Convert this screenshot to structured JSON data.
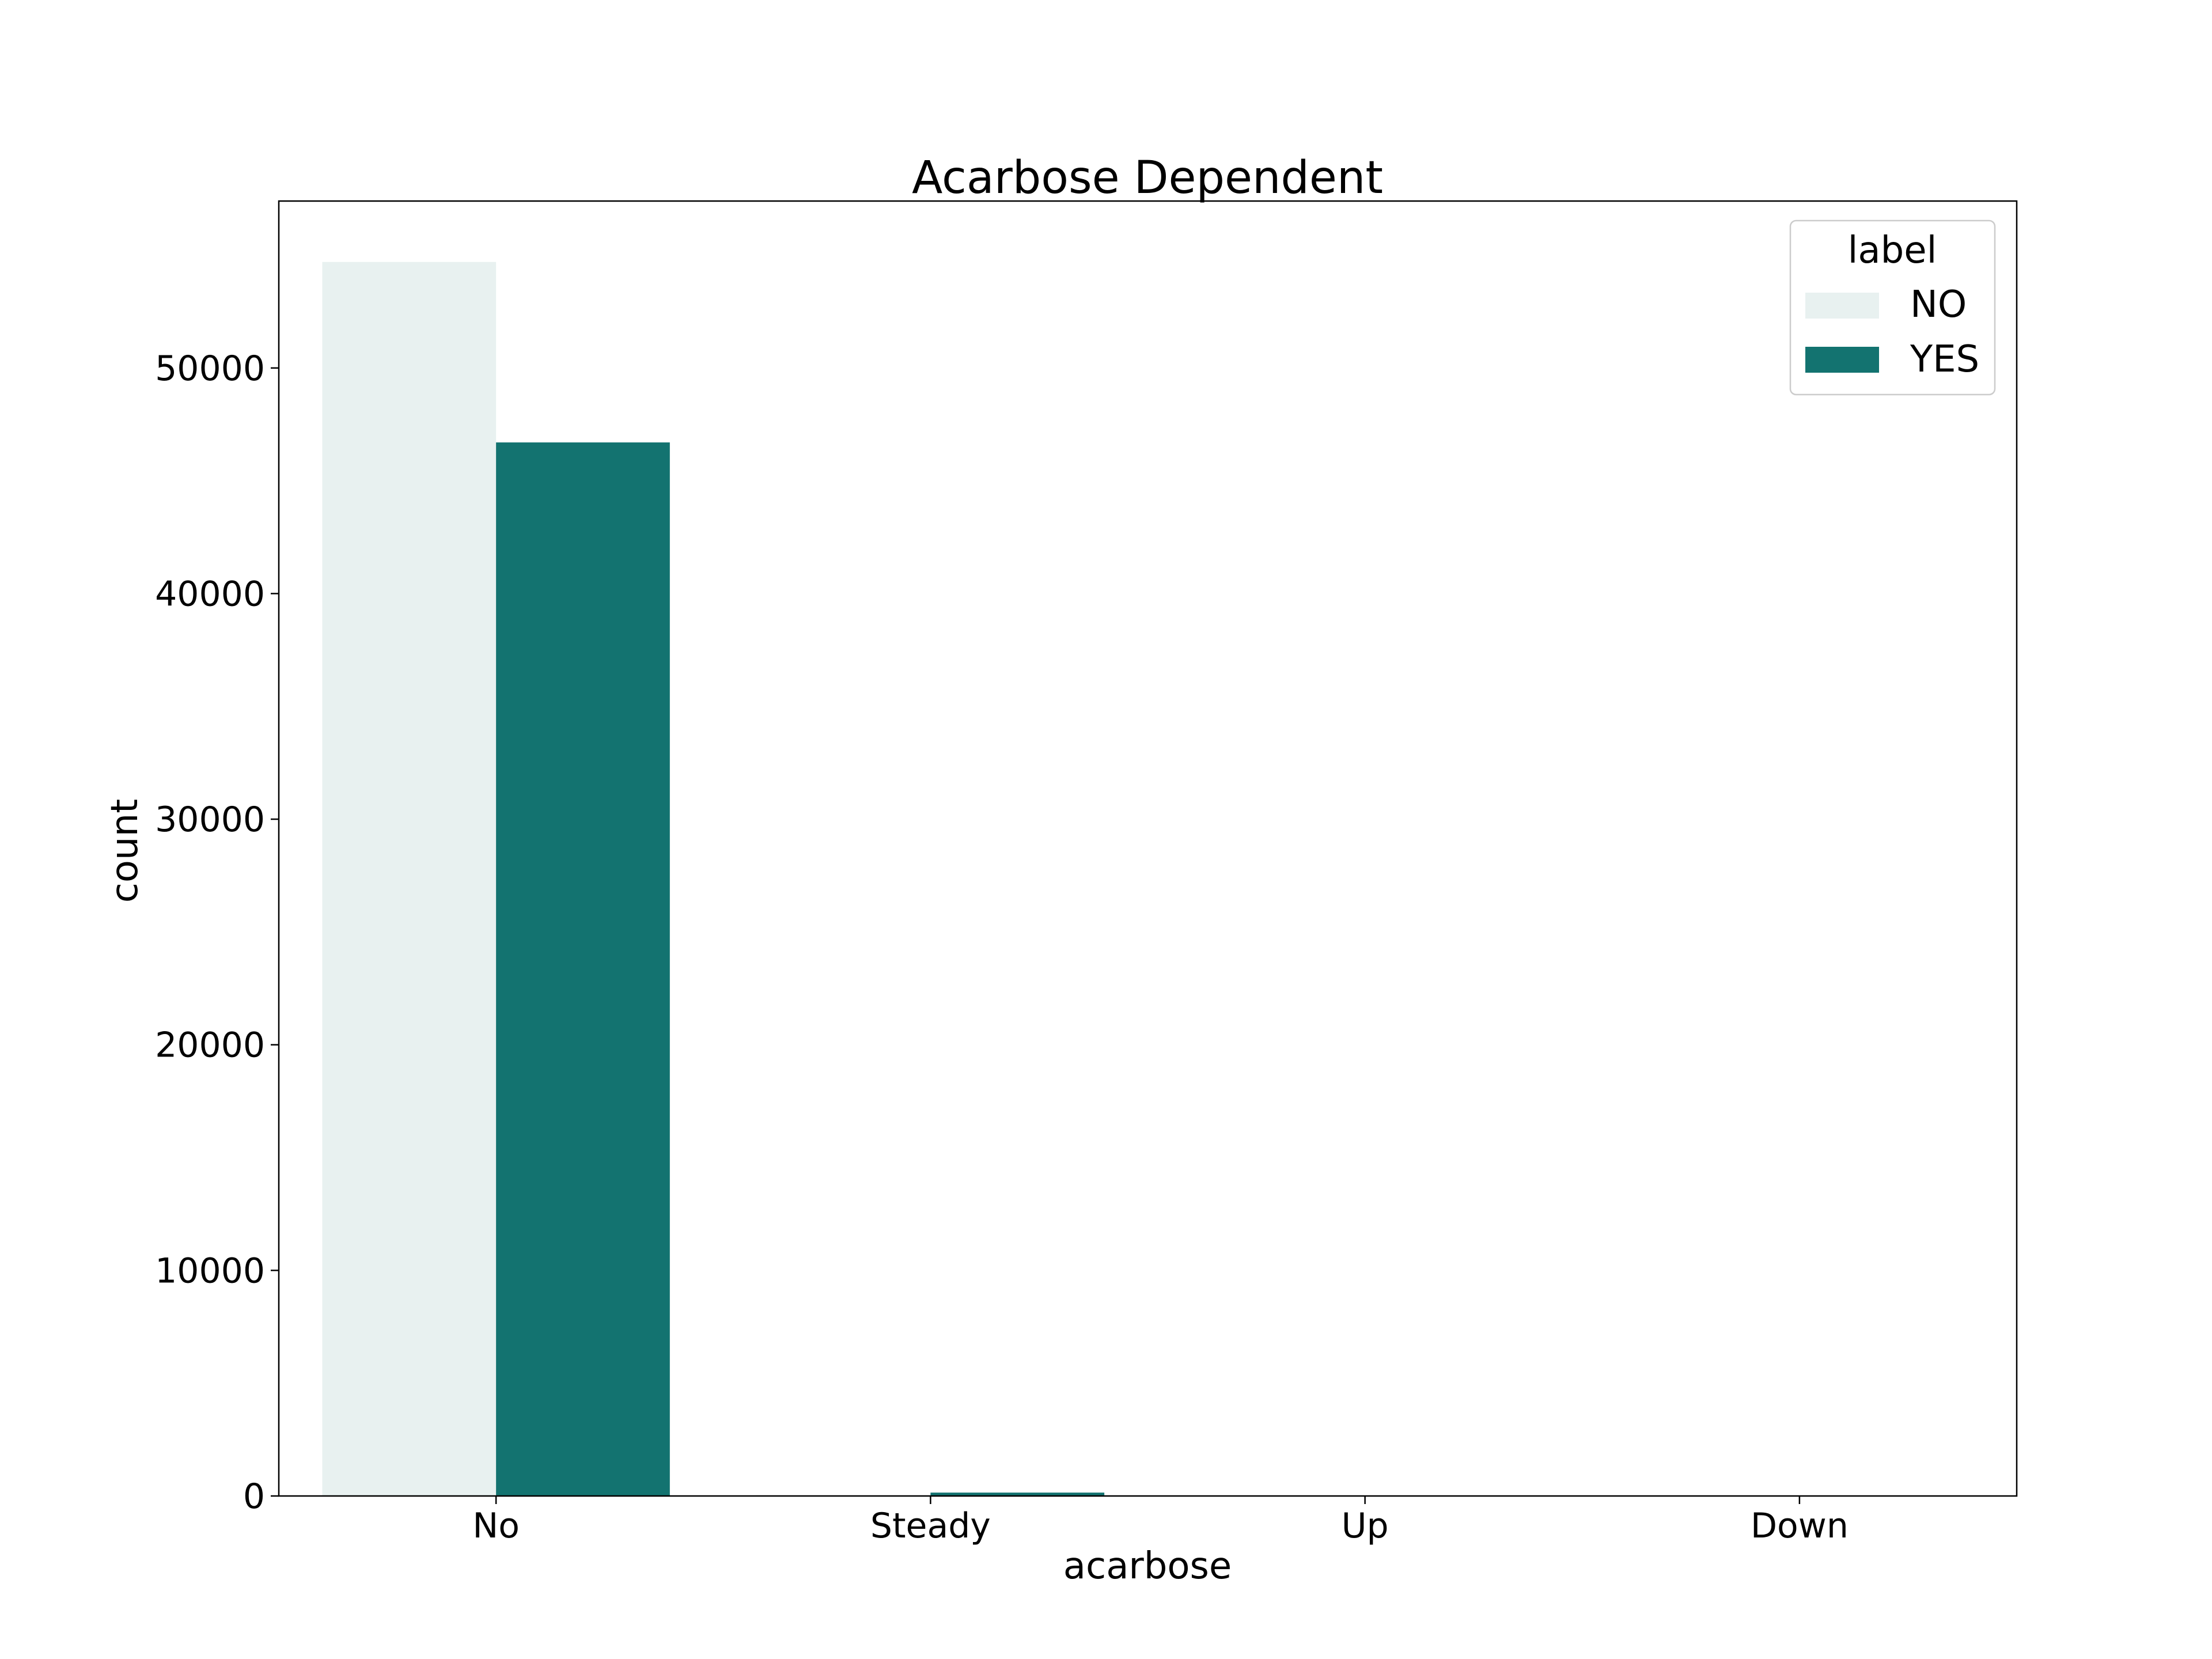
{
  "chart_data": {
    "type": "bar",
    "title": "Acarbose Dependent",
    "xlabel": "acarbose",
    "ylabel": "count",
    "categories": [
      "No",
      "Steady",
      "Up",
      "Down"
    ],
    "series": [
      {
        "name": "NO",
        "values": [
          54700,
          30,
          5,
          1
        ],
        "color": "#e8f1f0"
      },
      {
        "name": "YES",
        "values": [
          46700,
          150,
          5,
          1
        ],
        "color": "#137370"
      }
    ],
    "ylim": [
      0,
      57400
    ],
    "yticks": [
      0,
      10000,
      20000,
      30000,
      40000,
      50000
    ],
    "ytick_labels": [
      "0",
      "10000",
      "20000",
      "30000",
      "40000",
      "50000"
    ],
    "legend": {
      "title": "label",
      "position": "top-right"
    },
    "grid": false
  }
}
